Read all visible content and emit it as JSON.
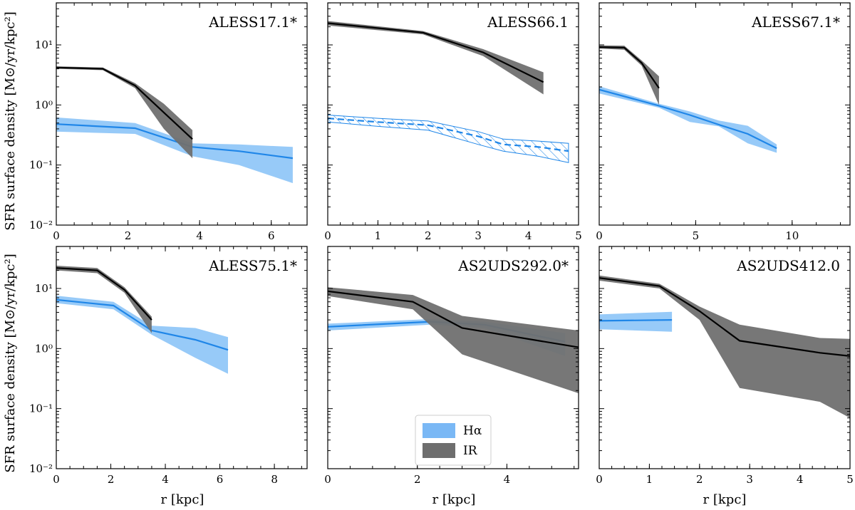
{
  "figure": {
    "ylabel": "SFR surface density [M⊙/yr/kpc²]",
    "xlabel": "r [kpc]",
    "legend": [
      {
        "label": "Hα",
        "color": "#7ab8f5"
      },
      {
        "label": "IR",
        "color": "#6e6e6e"
      }
    ],
    "colors": {
      "halpha_line": "#1f86e8",
      "halpha_band": "#8cc4f7",
      "ir_line": "#000000",
      "ir_band": "#707070"
    }
  },
  "chart_data": [
    {
      "type": "line",
      "title": "ALESS17.1*",
      "xlim": [
        0,
        7.0
      ],
      "ylim_log10": [
        -2,
        1.7
      ],
      "yscale": "log",
      "xticks": [
        0,
        2,
        4,
        6
      ],
      "yticks": [
        "10⁻²",
        "10⁻¹",
        "10⁰",
        "10¹"
      ],
      "series": [
        {
          "name": "Hα",
          "x": [
            0,
            2.2,
            3.8,
            5.1,
            6.6
          ],
          "y": [
            0.48,
            0.41,
            0.2,
            0.17,
            0.13
          ],
          "lo": [
            0.36,
            0.33,
            0.14,
            0.1,
            0.05
          ],
          "hi": [
            0.62,
            0.5,
            0.23,
            0.22,
            0.2
          ]
        },
        {
          "name": "IR",
          "x": [
            0,
            1.3,
            2.2,
            3.0,
            3.8
          ],
          "y": [
            4.2,
            4.0,
            2.1,
            0.75,
            0.27
          ],
          "lo": [
            4.0,
            3.8,
            1.9,
            0.4,
            0.13
          ],
          "hi": [
            4.4,
            4.2,
            2.3,
            1.05,
            0.38
          ]
        }
      ]
    },
    {
      "type": "line",
      "title": "ALESS66.1",
      "xlim": [
        0,
        5.0
      ],
      "ylim_log10": [
        -2,
        1.7
      ],
      "yscale": "log",
      "xticks": [
        0,
        1,
        2,
        3,
        4,
        5
      ],
      "yticks": [],
      "series": [
        {
          "name": "Hα",
          "x": [
            0,
            1.0,
            2.0,
            3.0,
            3.5,
            4.2,
            4.8
          ],
          "y": [
            0.6,
            0.52,
            0.46,
            0.3,
            0.22,
            0.2,
            0.17
          ],
          "lo": [
            0.52,
            0.44,
            0.38,
            0.22,
            0.17,
            0.14,
            0.11
          ],
          "hi": [
            0.68,
            0.6,
            0.54,
            0.36,
            0.27,
            0.25,
            0.23
          ],
          "hatched": true
        },
        {
          "name": "IR",
          "x": [
            0,
            1.9,
            3.1,
            4.3
          ],
          "y": [
            23,
            16,
            7.5,
            2.4
          ],
          "lo": [
            21,
            15,
            6.5,
            1.5
          ],
          "hi": [
            25,
            17,
            8.5,
            3.5
          ]
        }
      ]
    },
    {
      "type": "line",
      "title": "ALESS67.1*",
      "xlim": [
        0,
        13.0
      ],
      "ylim_log10": [
        -2,
        1.7
      ],
      "yscale": "log",
      "xticks": [
        0,
        5,
        10
      ],
      "yticks": [],
      "series": [
        {
          "name": "Hα",
          "x": [
            0,
            3.1,
            4.7,
            6.2,
            7.7,
            9.2
          ],
          "y": [
            1.8,
            0.97,
            0.68,
            0.47,
            0.33,
            0.19
          ],
          "lo": [
            1.55,
            0.9,
            0.52,
            0.44,
            0.23,
            0.16
          ],
          "hi": [
            2.05,
            1.05,
            0.78,
            0.55,
            0.45,
            0.22
          ]
        },
        {
          "name": "IR",
          "x": [
            0,
            1.3,
            2.2,
            3.1
          ],
          "y": [
            9.2,
            9.0,
            5.0,
            1.9
          ],
          "lo": [
            8.7,
            8.3,
            4.5,
            1.0
          ],
          "hi": [
            9.8,
            9.7,
            5.5,
            3.0
          ]
        }
      ]
    },
    {
      "type": "line",
      "title": "ALESS75.1*",
      "xlim": [
        0,
        9.2
      ],
      "ylim_log10": [
        -2,
        1.7
      ],
      "yscale": "log",
      "xticks": [
        0,
        2,
        4,
        6,
        8
      ],
      "yticks": [
        "10⁻²",
        "10⁻¹",
        "10⁰",
        "10¹"
      ],
      "series": [
        {
          "name": "Hα",
          "x": [
            0,
            2.1,
            3.5,
            5.1,
            6.3
          ],
          "y": [
            6.5,
            5.2,
            2.0,
            1.4,
            0.95
          ],
          "lo": [
            5.7,
            4.5,
            1.7,
            0.7,
            0.38
          ],
          "hi": [
            7.6,
            6.0,
            2.4,
            2.2,
            1.55
          ]
        },
        {
          "name": "IR",
          "x": [
            0,
            1.5,
            2.5,
            3.5
          ],
          "y": [
            22,
            20,
            9.5,
            3.0
          ],
          "lo": [
            20,
            18,
            8.5,
            1.8
          ],
          "hi": [
            24,
            22,
            10.5,
            3.4
          ]
        }
      ]
    },
    {
      "type": "line",
      "title": "AS2UDS292.0*",
      "xlim": [
        0,
        5.6
      ],
      "ylim_log10": [
        -2,
        1.7
      ],
      "yscale": "log",
      "xticks": [
        0,
        2,
        4
      ],
      "yticks": [],
      "series": [
        {
          "name": "Hα",
          "x": [
            0,
            2.3,
            3.5,
            5.3
          ],
          "y": [
            2.3,
            2.8,
            2.5,
            1.3
          ],
          "lo": [
            2.0,
            2.5,
            2.2,
            0.75
          ],
          "hi": [
            2.6,
            3.1,
            2.8,
            1.8
          ]
        },
        {
          "name": "IR",
          "x": [
            0,
            1.9,
            3.0,
            5.6
          ],
          "y": [
            9.0,
            6.0,
            2.2,
            1.05
          ],
          "lo": [
            7.5,
            4.5,
            0.8,
            0.18
          ],
          "hi": [
            10.5,
            7.8,
            3.5,
            2.0
          ]
        }
      ]
    },
    {
      "type": "line",
      "title": "AS2UDS412.0",
      "xlim": [
        0,
        5.0
      ],
      "ylim_log10": [
        -2,
        1.7
      ],
      "yscale": "log",
      "xticks": [
        0,
        1,
        2,
        3,
        4,
        5
      ],
      "yticks": [],
      "series": [
        {
          "name": "Hα",
          "x": [
            0,
            1.45
          ],
          "y": [
            2.9,
            3.0
          ],
          "lo": [
            2.1,
            1.9
          ],
          "hi": [
            3.7,
            4.1
          ]
        },
        {
          "name": "IR",
          "x": [
            0,
            1.2,
            2.0,
            2.8,
            4.4,
            5.0
          ],
          "y": [
            15,
            11,
            4.2,
            1.35,
            0.85,
            0.75
          ],
          "lo": [
            13.5,
            10,
            3.0,
            0.22,
            0.13,
            0.07
          ],
          "hi": [
            16.5,
            12,
            5.0,
            2.5,
            1.5,
            1.45
          ]
        }
      ]
    }
  ]
}
